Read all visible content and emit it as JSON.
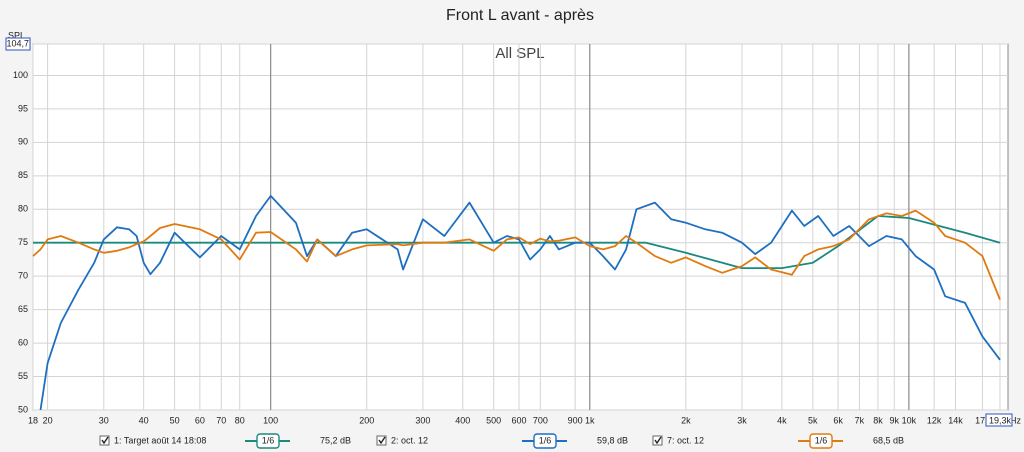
{
  "chart_data": {
    "type": "line",
    "title": "Front L avant - après",
    "subtitle": "All SPL",
    "y_label": "SPL",
    "x_unit": "Hz",
    "log_x": true,
    "grid": true,
    "xlim": [
      18,
      19300
    ],
    "ylim": [
      50,
      104.7
    ],
    "xticks": [
      18,
      20,
      30,
      40,
      50,
      60,
      70,
      80,
      100,
      200,
      300,
      400,
      500,
      600,
      700,
      900,
      {
        "value": 1000,
        "label": "1k"
      },
      {
        "value": 2000,
        "label": "2k"
      },
      {
        "value": 3000,
        "label": "3k"
      },
      {
        "value": 4000,
        "label": "4k"
      },
      {
        "value": 5000,
        "label": "5k"
      },
      {
        "value": 6000,
        "label": "6k"
      },
      {
        "value": 7000,
        "label": "7k"
      },
      {
        "value": 8000,
        "label": "8k"
      },
      {
        "value": 9000,
        "label": "9k"
      },
      {
        "value": 10000,
        "label": "10k"
      },
      {
        "value": 12000,
        "label": "12k"
      },
      {
        "value": 14000,
        "label": "14k"
      },
      {
        "value": 17000,
        "label": "17k"
      },
      {
        "value": 19300,
        "label": "19,3k"
      }
    ],
    "yticks": [
      50,
      55,
      60,
      65,
      70,
      75,
      80,
      85,
      90,
      95,
      100,
      {
        "value": 104.7,
        "label": "104,7"
      }
    ],
    "series": [
      {
        "name": "1: Target août 14 18:08",
        "color": "#1a8a80",
        "smoothing": "1/6",
        "level": "75,2 dB",
        "x": [
          18,
          1500,
          2000,
          3000,
          4000,
          5000,
          6000,
          8000,
          10000,
          15000,
          19300
        ],
        "values": [
          75,
          75,
          73.5,
          71.2,
          71.2,
          72,
          74.5,
          79,
          78.7,
          76.5,
          75
        ]
      },
      {
        "name": "2: oct. 12",
        "color": "#1f6fc0",
        "smoothing": "1/6",
        "level": "59,8 dB",
        "x": [
          18,
          19,
          20,
          22,
          25,
          28,
          30,
          33,
          36,
          38,
          40,
          42,
          45,
          50,
          60,
          70,
          80,
          90,
          100,
          120,
          130,
          140,
          160,
          180,
          200,
          250,
          260,
          300,
          350,
          420,
          500,
          550,
          600,
          650,
          700,
          750,
          800,
          900,
          1000,
          1100,
          1200,
          1300,
          1400,
          1600,
          1800,
          2000,
          2300,
          2600,
          3000,
          3300,
          3700,
          4300,
          4700,
          5200,
          5800,
          6500,
          7500,
          8500,
          9500,
          10500,
          12000,
          13000,
          15000,
          17000,
          19300
        ],
        "values": [
          null,
          50,
          57,
          63,
          68,
          72,
          75.5,
          77.3,
          77,
          76,
          72,
          70.3,
          72,
          76.5,
          72.8,
          76,
          74,
          79,
          82,
          78,
          73,
          75.5,
          73,
          76.5,
          77,
          74,
          71,
          78.5,
          76,
          81,
          75,
          76,
          75.5,
          72.5,
          74,
          76,
          74,
          75,
          75,
          73,
          71,
          74,
          80,
          81,
          78.5,
          78,
          77,
          76.5,
          75,
          73.3,
          75,
          79.8,
          77.5,
          79,
          76,
          77.5,
          74.5,
          76,
          75.5,
          73,
          71,
          67,
          66,
          61,
          57.5
        ]
      },
      {
        "name": "7: oct. 12",
        "color": "#e07b10",
        "smoothing": "1/6",
        "level": "68,5 dB",
        "x": [
          18,
          19,
          20,
          22,
          25,
          28,
          30,
          33,
          36,
          38,
          40,
          42,
          45,
          50,
          60,
          70,
          80,
          90,
          100,
          120,
          130,
          140,
          160,
          180,
          200,
          250,
          260,
          300,
          350,
          420,
          500,
          550,
          600,
          650,
          700,
          750,
          800,
          900,
          1000,
          1100,
          1200,
          1300,
          1400,
          1600,
          1800,
          2000,
          2300,
          2600,
          3000,
          3300,
          3700,
          4300,
          4700,
          5200,
          5800,
          6500,
          7500,
          8500,
          9500,
          10500,
          12000,
          13000,
          15000,
          17000,
          19300
        ],
        "values": [
          73,
          74,
          75.5,
          76,
          75,
          74,
          73.5,
          73.8,
          74.3,
          74.8,
          75.2,
          76,
          77.2,
          77.8,
          77,
          75.5,
          72.5,
          76.5,
          76.6,
          74,
          72.2,
          75.5,
          73,
          74,
          74.6,
          74.8,
          74.6,
          75,
          75,
          75.5,
          73.8,
          75.5,
          75.8,
          74.8,
          75.6,
          75.2,
          75.3,
          75.8,
          74.5,
          74,
          74.5,
          76,
          75,
          73,
          72,
          72.8,
          71.5,
          70.5,
          71.5,
          72.8,
          71,
          70.2,
          73,
          74,
          74.5,
          75.5,
          78.5,
          79.4,
          79,
          79.8,
          78,
          76,
          75,
          73,
          66.5
        ]
      }
    ]
  }
}
